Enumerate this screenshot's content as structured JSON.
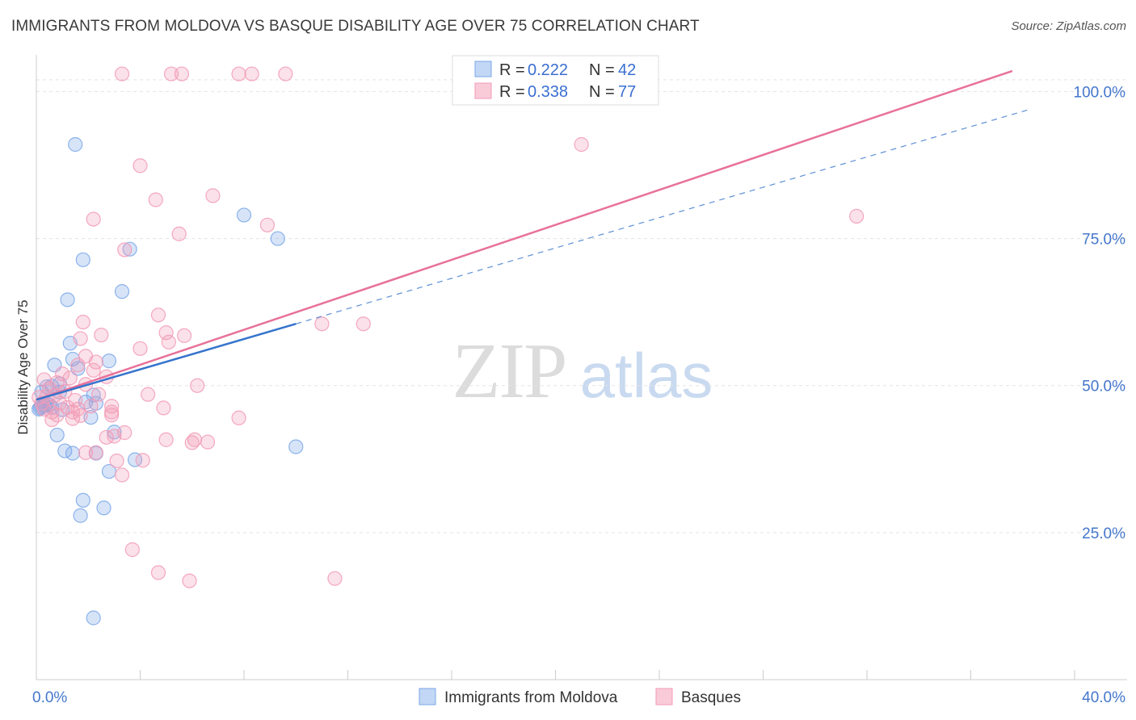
{
  "title": "IMMIGRANTS FROM MOLDOVA VS BASQUE DISABILITY AGE OVER 75 CORRELATION CHART",
  "source": "Source: ZipAtlas.com",
  "watermark": {
    "zip": "ZIP",
    "atlas": "atlas"
  },
  "colors": {
    "blue": "#7aa7e8",
    "pink": "#f29ab6",
    "blue_line": "#3574cc",
    "pink_line": "#e8719a"
  },
  "legend": {
    "r_label": "R =",
    "n_label": "N =",
    "rows": [
      {
        "r": "0.222",
        "n": "42"
      },
      {
        "r": "0.338",
        "n": "77"
      }
    ]
  },
  "chart_data": {
    "type": "scatter",
    "title": "IMMIGRANTS FROM MOLDOVA VS BASQUE DISABILITY AGE OVER 75 CORRELATION CHART",
    "xlabel": "",
    "ylabel": "Disability Age Over 75",
    "xlim": [
      0,
      40
    ],
    "ylim": [
      0,
      105
    ],
    "x_tick_labels": [
      "0.0%",
      "40.0%"
    ],
    "y_ticks": [
      25,
      50,
      75,
      100
    ],
    "y_tick_labels": [
      "25.0%",
      "50.0%",
      "75.0%",
      "100.0%"
    ],
    "series": [
      {
        "name": "Immigrants from Moldova",
        "R": 0.222,
        "N": 42,
        "trend": {
          "x": [
            0,
            10
          ],
          "y": [
            47.6,
            60.5
          ]
        },
        "points": [
          [
            1.5,
            91.0
          ],
          [
            8.0,
            79.0
          ],
          [
            9.3,
            75.0
          ],
          [
            3.6,
            73.2
          ],
          [
            1.8,
            71.4
          ],
          [
            3.3,
            66.0
          ],
          [
            1.2,
            64.6
          ],
          [
            1.3,
            57.2
          ],
          [
            1.4,
            54.5
          ],
          [
            2.8,
            54.2
          ],
          [
            0.7,
            53.5
          ],
          [
            1.6,
            52.9
          ],
          [
            0.4,
            49.8
          ],
          [
            0.9,
            50.3
          ],
          [
            0.6,
            49.9
          ],
          [
            0.2,
            48.9
          ],
          [
            2.2,
            48.4
          ],
          [
            2.3,
            47.0
          ],
          [
            1.9,
            47.2
          ],
          [
            0.5,
            46.7
          ],
          [
            0.3,
            46.6
          ],
          [
            0.35,
            46.6
          ],
          [
            0.2,
            46.4
          ],
          [
            0.15,
            46.2
          ],
          [
            0.1,
            46.0
          ],
          [
            0.4,
            46.9
          ],
          [
            0.6,
            46.3
          ],
          [
            1.0,
            45.9
          ],
          [
            2.1,
            44.6
          ],
          [
            3.0,
            42.1
          ],
          [
            0.8,
            41.6
          ],
          [
            1.1,
            38.9
          ],
          [
            1.4,
            38.5
          ],
          [
            2.3,
            38.5
          ],
          [
            3.8,
            37.4
          ],
          [
            10.0,
            39.6
          ],
          [
            2.8,
            35.4
          ],
          [
            1.8,
            30.5
          ],
          [
            2.6,
            29.2
          ],
          [
            1.7,
            27.9
          ],
          [
            2.2,
            10.5
          ],
          [
            0.9,
            48.9
          ]
        ]
      },
      {
        "name": "Basques",
        "R": 0.338,
        "N": 77,
        "trend": {
          "x": [
            0,
            37.6
          ],
          "y": [
            47.6,
            103.5
          ]
        },
        "points": [
          [
            3.3,
            103.0
          ],
          [
            5.2,
            103.0
          ],
          [
            5.6,
            103.0
          ],
          [
            7.8,
            103.0
          ],
          [
            8.3,
            103.0
          ],
          [
            9.6,
            103.0
          ],
          [
            21.0,
            91.0
          ],
          [
            4.0,
            87.4
          ],
          [
            6.8,
            82.3
          ],
          [
            4.6,
            81.6
          ],
          [
            2.2,
            78.3
          ],
          [
            8.9,
            77.3
          ],
          [
            31.6,
            78.8
          ],
          [
            5.5,
            75.8
          ],
          [
            3.4,
            73.1
          ],
          [
            4.7,
            62.0
          ],
          [
            1.8,
            60.8
          ],
          [
            11.0,
            60.5
          ],
          [
            12.6,
            60.5
          ],
          [
            5.0,
            59.0
          ],
          [
            2.5,
            58.6
          ],
          [
            5.7,
            58.5
          ],
          [
            1.7,
            58.0
          ],
          [
            5.1,
            57.4
          ],
          [
            4.0,
            56.3
          ],
          [
            1.9,
            55.0
          ],
          [
            2.3,
            54.0
          ],
          [
            1.6,
            53.5
          ],
          [
            2.2,
            52.6
          ],
          [
            1.0,
            52.0
          ],
          [
            2.7,
            51.5
          ],
          [
            1.3,
            51.3
          ],
          [
            0.3,
            51.0
          ],
          [
            0.8,
            50.5
          ],
          [
            1.9,
            50.2
          ],
          [
            6.2,
            50.0
          ],
          [
            0.5,
            49.5
          ],
          [
            1.1,
            49.0
          ],
          [
            2.4,
            48.5
          ],
          [
            0.7,
            48.3
          ],
          [
            0.1,
            48.0
          ],
          [
            0.4,
            48.2
          ],
          [
            1.5,
            47.5
          ],
          [
            0.2,
            47.0
          ],
          [
            0.9,
            47.0
          ],
          [
            2.1,
            46.5
          ],
          [
            4.3,
            48.5
          ],
          [
            0.3,
            46.0
          ],
          [
            1.6,
            46.0
          ],
          [
            0.6,
            45.5
          ],
          [
            1.4,
            45.5
          ],
          [
            2.9,
            46.5
          ],
          [
            0.8,
            45.0
          ],
          [
            4.9,
            46.2
          ],
          [
            2.9,
            45.0
          ],
          [
            1.7,
            44.9
          ],
          [
            1.4,
            44.4
          ],
          [
            7.8,
            44.5
          ],
          [
            3.0,
            41.4
          ],
          [
            2.7,
            41.2
          ],
          [
            5.0,
            40.8
          ],
          [
            6.0,
            40.3
          ],
          [
            6.1,
            40.8
          ],
          [
            6.6,
            40.4
          ],
          [
            3.4,
            42.0
          ],
          [
            1.9,
            38.6
          ],
          [
            2.3,
            38.6
          ],
          [
            3.1,
            37.2
          ],
          [
            4.1,
            37.3
          ],
          [
            3.3,
            34.8
          ],
          [
            0.6,
            44.2
          ],
          [
            1.2,
            46.3
          ],
          [
            3.7,
            22.1
          ],
          [
            4.7,
            18.2
          ],
          [
            5.9,
            16.8
          ],
          [
            11.5,
            17.2
          ],
          [
            2.9,
            45.5
          ]
        ]
      }
    ]
  },
  "bottom_legend": [
    "Immigrants from Moldova",
    "Basques"
  ]
}
